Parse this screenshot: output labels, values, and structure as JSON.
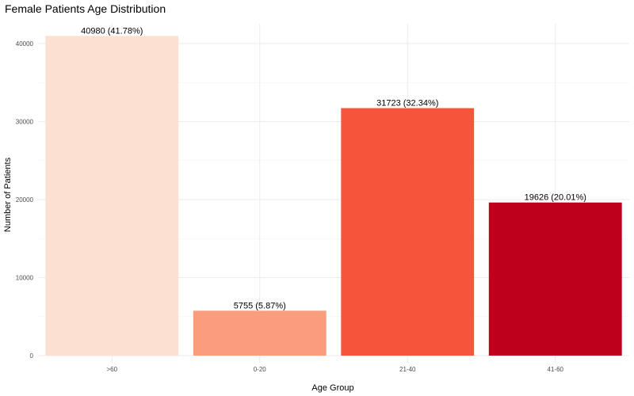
{
  "chart_data": {
    "type": "bar",
    "title": "Female Patients Age Distribution",
    "xlabel": "Age Group",
    "ylabel": "Number of Patients",
    "categories": [
      ">60",
      "0-20",
      "21-40",
      "41-60"
    ],
    "values": [
      40980,
      5755,
      31723,
      19626
    ],
    "labels": [
      "40980 (41.78%)",
      "5755 (5.87%)",
      "31723 (32.34%)",
      "19626 (20.01%)"
    ],
    "colors": [
      "#fce0d1",
      "#f99d7c",
      "#f7553b",
      "#bf001c"
    ],
    "yticks": [
      0,
      10000,
      20000,
      30000,
      40000
    ],
    "ylim": [
      0,
      43000
    ],
    "grid": true,
    "legend": "none"
  }
}
